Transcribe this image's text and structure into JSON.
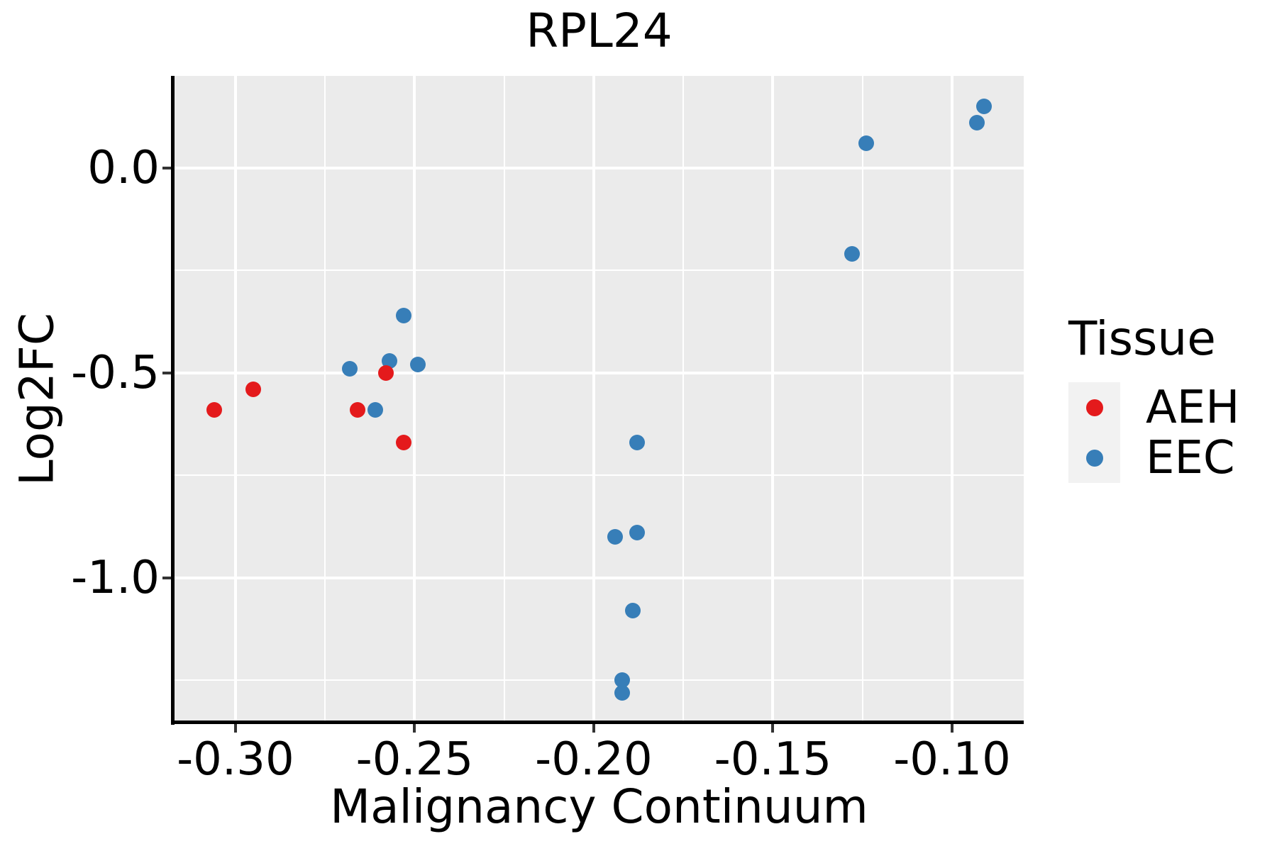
{
  "title": "RPL24",
  "chart_data": {
    "type": "scatter",
    "title": "RPL24",
    "xlabel": "Malignancy Continuum",
    "ylabel": "Log2FC",
    "xlim": [
      -0.317,
      -0.08
    ],
    "ylim": [
      -1.355,
      0.225
    ],
    "x_ticks": [
      -0.3,
      -0.25,
      -0.2,
      -0.15,
      -0.1
    ],
    "x_tick_labels": [
      "-0.30",
      "-0.25",
      "-0.20",
      "-0.15",
      "-0.10"
    ],
    "x_minor_ticks": [
      -0.275,
      -0.225,
      -0.175,
      -0.125
    ],
    "y_ticks": [
      0.0,
      -0.5,
      -1.0
    ],
    "y_tick_labels": [
      "0.0",
      "-0.5",
      "-1.0"
    ],
    "y_minor_ticks": [
      -0.25,
      -0.75,
      -1.25
    ],
    "grid": true,
    "legend_position": "right",
    "legend_title": "Tissue",
    "series": [
      {
        "name": "AEH",
        "color": "#e41a1c",
        "points": [
          [
            -0.306,
            -0.59
          ],
          [
            -0.295,
            -0.54
          ],
          [
            -0.266,
            -0.59
          ],
          [
            -0.258,
            -0.5
          ],
          [
            -0.253,
            -0.67
          ]
        ]
      },
      {
        "name": "EEC",
        "color": "#377eb8",
        "points": [
          [
            -0.268,
            -0.49
          ],
          [
            -0.261,
            -0.59
          ],
          [
            -0.257,
            -0.47
          ],
          [
            -0.253,
            -0.36
          ],
          [
            -0.249,
            -0.48
          ],
          [
            -0.194,
            -0.9
          ],
          [
            -0.192,
            -1.25
          ],
          [
            -0.192,
            -1.28
          ],
          [
            -0.189,
            -1.08
          ],
          [
            -0.188,
            -0.67
          ],
          [
            -0.188,
            -0.89
          ],
          [
            -0.128,
            -0.21
          ],
          [
            -0.124,
            0.06
          ],
          [
            -0.093,
            0.11
          ],
          [
            -0.091,
            0.15
          ]
        ]
      }
    ]
  },
  "legend": {
    "title": "Tissue",
    "items": [
      {
        "label": "AEH",
        "color": "#e41a1c"
      },
      {
        "label": "EEC",
        "color": "#377eb8"
      }
    ]
  },
  "colors": {
    "panel_bg": "#ebebeb",
    "grid": "#ffffff",
    "axis_line": "#000000",
    "tick_mark": "#333333",
    "legend_key_bg": "#f2f2f2",
    "text": "#000000"
  }
}
